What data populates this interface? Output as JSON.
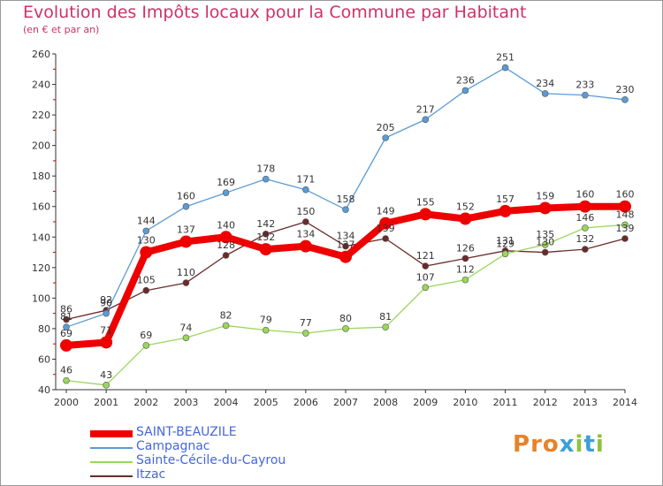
{
  "title": "Evolution des Impôts locaux pour la Commune par Habitant",
  "subtitle": "(en € et par an)",
  "logo": {
    "text": "Proxiti",
    "colors": [
      "#e8822a",
      "#3ba0d8",
      "#8fc23c"
    ]
  },
  "chart_data": {
    "type": "line",
    "x": [
      "2000",
      "2001",
      "2002",
      "2003",
      "2004",
      "2005",
      "2006",
      "2007",
      "2008",
      "2009",
      "2010",
      "2011",
      "2012",
      "2013",
      "2014"
    ],
    "ylim": [
      40,
      260
    ],
    "yticks": [
      40,
      60,
      80,
      100,
      120,
      140,
      160,
      180,
      200,
      220,
      240,
      260
    ],
    "grid": false,
    "legend_placement": "bottom-left",
    "series": [
      {
        "name": "SAINT-BEAUZILE",
        "color": "#ee0000",
        "width": 8,
        "marker": 7,
        "values": [
          69,
          71,
          130,
          137,
          140,
          132,
          134,
          127,
          149,
          155,
          152,
          157,
          159,
          160,
          160
        ]
      },
      {
        "name": "Campagnac",
        "color": "#5b9bd5",
        "width": 1.3,
        "marker": 3.5,
        "values": [
          81,
          90,
          144,
          160,
          169,
          178,
          171,
          158,
          205,
          217,
          236,
          251,
          234,
          233,
          230
        ]
      },
      {
        "name": "Sainte-Cécile-du-Cayrou",
        "color": "#9ad75a",
        "width": 1.3,
        "marker": 3.5,
        "values": [
          46,
          43,
          69,
          74,
          82,
          79,
          77,
          80,
          81,
          107,
          112,
          129,
          135,
          146,
          148
        ]
      },
      {
        "name": "Itzac",
        "color": "#6b2a2a",
        "width": 1.3,
        "marker": 3.5,
        "values": [
          86,
          92,
          105,
          110,
          128,
          142,
          150,
          134,
          139,
          121,
          126,
          131,
          130,
          132,
          139
        ]
      }
    ]
  }
}
